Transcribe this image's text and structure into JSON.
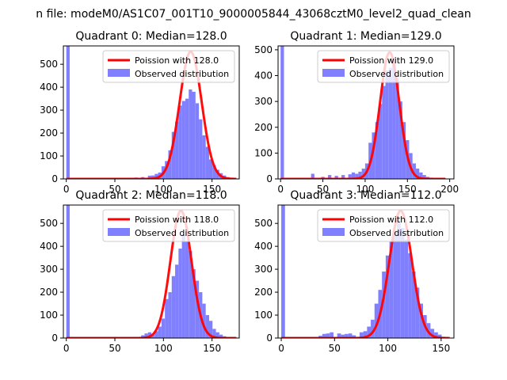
{
  "figure": {
    "suptitle": "n file: modeM0/AS1C07_001T10_9000005844_43068cztM0_level2_quad_clean"
  },
  "colors": {
    "hist_fill": "#8080ff",
    "curve": "#ff0000",
    "axis": "#000000"
  },
  "chart_data": [
    {
      "type": "bar",
      "title": "Quadrant 0: Median=128.0",
      "legend": [
        "Poission with 128.0",
        "Observed distribution"
      ],
      "legend_position": "upper-right",
      "median": 128.0,
      "xlim": [
        -3,
        178
      ],
      "ylim": [
        0,
        580
      ],
      "xticks": [
        0,
        50,
        100,
        150
      ],
      "yticks": [
        0,
        100,
        200,
        300,
        400,
        500
      ],
      "bin_width": 3.5,
      "bins": [
        {
          "x": 0,
          "count": 580
        },
        {
          "x": 42,
          "count": 2
        },
        {
          "x": 49,
          "count": 3
        },
        {
          "x": 56,
          "count": 3
        },
        {
          "x": 63,
          "count": 5
        },
        {
          "x": 70,
          "count": 6
        },
        {
          "x": 77,
          "count": 8
        },
        {
          "x": 84,
          "count": 14
        },
        {
          "x": 87.5,
          "count": 15
        },
        {
          "x": 91,
          "count": 22
        },
        {
          "x": 94.5,
          "count": 28
        },
        {
          "x": 98,
          "count": 55
        },
        {
          "x": 101.5,
          "count": 78
        },
        {
          "x": 105,
          "count": 125
        },
        {
          "x": 108.5,
          "count": 205
        },
        {
          "x": 112,
          "count": 250
        },
        {
          "x": 115.5,
          "count": 320
        },
        {
          "x": 119,
          "count": 340
        },
        {
          "x": 122.5,
          "count": 350
        },
        {
          "x": 126,
          "count": 390
        },
        {
          "x": 129.5,
          "count": 380
        },
        {
          "x": 133,
          "count": 330
        },
        {
          "x": 136.5,
          "count": 260
        },
        {
          "x": 140,
          "count": 190
        },
        {
          "x": 143.5,
          "count": 140
        },
        {
          "x": 147,
          "count": 85
        },
        {
          "x": 150.5,
          "count": 60
        },
        {
          "x": 154,
          "count": 40
        },
        {
          "x": 157.5,
          "count": 25
        },
        {
          "x": 161,
          "count": 15
        },
        {
          "x": 164.5,
          "count": 8
        },
        {
          "x": 168,
          "count": 4
        }
      ],
      "poisson_curve": {
        "lambda": 128,
        "peak": 555,
        "from": 0,
        "to": 175
      }
    },
    {
      "type": "bar",
      "title": "Quadrant 1: Median=129.0",
      "legend": [
        "Poission with 129.0",
        "Observed distribution"
      ],
      "legend_position": "upper-right",
      "median": 129.0,
      "xlim": [
        -3,
        205
      ],
      "ylim": [
        0,
        515
      ],
      "xticks": [
        0,
        50,
        100,
        150,
        200
      ],
      "yticks": [
        0,
        100,
        200,
        300,
        400,
        500
      ],
      "bin_width": 4,
      "bins": [
        {
          "x": 0,
          "count": 515
        },
        {
          "x": 36,
          "count": 20
        },
        {
          "x": 48,
          "count": 8
        },
        {
          "x": 56,
          "count": 15
        },
        {
          "x": 64,
          "count": 12
        },
        {
          "x": 72,
          "count": 15
        },
        {
          "x": 80,
          "count": 18
        },
        {
          "x": 84,
          "count": 25
        },
        {
          "x": 88,
          "count": 20
        },
        {
          "x": 92,
          "count": 28
        },
        {
          "x": 96,
          "count": 40
        },
        {
          "x": 100,
          "count": 60
        },
        {
          "x": 104,
          "count": 140
        },
        {
          "x": 108,
          "count": 180
        },
        {
          "x": 112,
          "count": 220
        },
        {
          "x": 116,
          "count": 290
        },
        {
          "x": 120,
          "count": 360
        },
        {
          "x": 124,
          "count": 420
        },
        {
          "x": 128,
          "count": 430
        },
        {
          "x": 132,
          "count": 470
        },
        {
          "x": 136,
          "count": 390
        },
        {
          "x": 140,
          "count": 300
        },
        {
          "x": 144,
          "count": 220
        },
        {
          "x": 148,
          "count": 150
        },
        {
          "x": 152,
          "count": 100
        },
        {
          "x": 156,
          "count": 60
        },
        {
          "x": 160,
          "count": 40
        },
        {
          "x": 164,
          "count": 25
        },
        {
          "x": 168,
          "count": 15
        },
        {
          "x": 172,
          "count": 8
        },
        {
          "x": 176,
          "count": 5
        }
      ],
      "poisson_curve": {
        "lambda": 129,
        "peak": 490,
        "from": 0,
        "to": 195
      }
    },
    {
      "type": "bar",
      "title": "Quadrant 2: Median=118.0",
      "legend": [
        "Poission with 118.0",
        "Observed distribution"
      ],
      "legend_position": "upper-right",
      "median": 118.0,
      "xlim": [
        -3,
        178
      ],
      "ylim": [
        0,
        580
      ],
      "xticks": [
        0,
        50,
        100,
        150
      ],
      "yticks": [
        0,
        100,
        200,
        300,
        400,
        500
      ],
      "bin_width": 3.5,
      "bins": [
        {
          "x": 0,
          "count": 580
        },
        {
          "x": 70,
          "count": 5
        },
        {
          "x": 77,
          "count": 12
        },
        {
          "x": 80.5,
          "count": 20
        },
        {
          "x": 84,
          "count": 25
        },
        {
          "x": 87.5,
          "count": 15
        },
        {
          "x": 91,
          "count": 30
        },
        {
          "x": 94.5,
          "count": 50
        },
        {
          "x": 98,
          "count": 85
        },
        {
          "x": 101.5,
          "count": 170
        },
        {
          "x": 105,
          "count": 200
        },
        {
          "x": 108.5,
          "count": 270
        },
        {
          "x": 112,
          "count": 320
        },
        {
          "x": 115.5,
          "count": 390
        },
        {
          "x": 119,
          "count": 450
        },
        {
          "x": 122.5,
          "count": 420
        },
        {
          "x": 126,
          "count": 380
        },
        {
          "x": 129.5,
          "count": 300
        },
        {
          "x": 133,
          "count": 250
        },
        {
          "x": 136.5,
          "count": 200
        },
        {
          "x": 140,
          "count": 150
        },
        {
          "x": 143.5,
          "count": 100
        },
        {
          "x": 147,
          "count": 75
        },
        {
          "x": 150.5,
          "count": 40
        },
        {
          "x": 154,
          "count": 25
        },
        {
          "x": 157.5,
          "count": 15
        },
        {
          "x": 161,
          "count": 8
        },
        {
          "x": 164.5,
          "count": 4
        }
      ],
      "poisson_curve": {
        "lambda": 118,
        "peak": 555,
        "from": 0,
        "to": 175
      }
    },
    {
      "type": "bar",
      "title": "Quadrant 3: Median=112.0",
      "legend": [
        "Poission with 112.0",
        "Observed distribution"
      ],
      "legend_position": "upper-right",
      "median": 112.0,
      "xlim": [
        -3,
        162
      ],
      "ylim": [
        0,
        580
      ],
      "xticks": [
        0,
        50,
        100,
        150
      ],
      "yticks": [
        0,
        100,
        200,
        300,
        400,
        500
      ],
      "bin_width": 3.5,
      "bins": [
        {
          "x": 0,
          "count": 580
        },
        {
          "x": 35,
          "count": 10
        },
        {
          "x": 38.5,
          "count": 18
        },
        {
          "x": 42,
          "count": 20
        },
        {
          "x": 45.5,
          "count": 25
        },
        {
          "x": 52.5,
          "count": 20
        },
        {
          "x": 56,
          "count": 15
        },
        {
          "x": 59.5,
          "count": 18
        },
        {
          "x": 63,
          "count": 20
        },
        {
          "x": 66.5,
          "count": 12
        },
        {
          "x": 73.5,
          "count": 25
        },
        {
          "x": 77,
          "count": 30
        },
        {
          "x": 80.5,
          "count": 50
        },
        {
          "x": 84,
          "count": 80
        },
        {
          "x": 87.5,
          "count": 150
        },
        {
          "x": 91,
          "count": 210
        },
        {
          "x": 94.5,
          "count": 290
        },
        {
          "x": 98,
          "count": 360
        },
        {
          "x": 101.5,
          "count": 420
        },
        {
          "x": 105,
          "count": 470
        },
        {
          "x": 108.5,
          "count": 510
        },
        {
          "x": 112,
          "count": 480
        },
        {
          "x": 115.5,
          "count": 430
        },
        {
          "x": 119,
          "count": 370
        },
        {
          "x": 122.5,
          "count": 290
        },
        {
          "x": 126,
          "count": 220
        },
        {
          "x": 129.5,
          "count": 150
        },
        {
          "x": 133,
          "count": 100
        },
        {
          "x": 136.5,
          "count": 65
        },
        {
          "x": 140,
          "count": 40
        },
        {
          "x": 143.5,
          "count": 25
        },
        {
          "x": 147,
          "count": 15
        },
        {
          "x": 150.5,
          "count": 5
        }
      ],
      "poisson_curve": {
        "lambda": 112,
        "peak": 555,
        "from": 0,
        "to": 158
      }
    }
  ]
}
